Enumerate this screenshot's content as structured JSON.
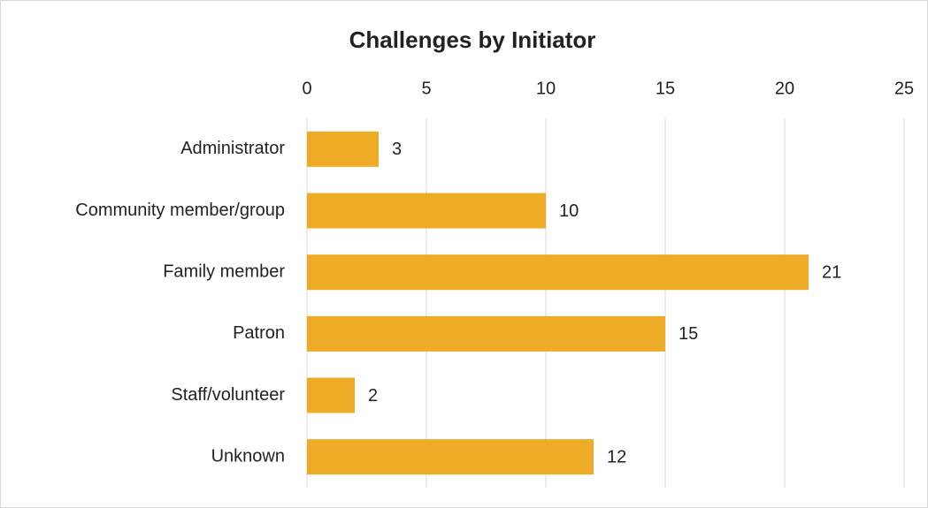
{
  "chart_data": {
    "type": "bar",
    "orientation": "horizontal",
    "title": "Challenges by Initiator",
    "categories": [
      "Administrator",
      "Community member/group",
      "Family member",
      "Patron",
      "Staff/volunteer",
      "Unknown"
    ],
    "values": [
      3,
      10,
      21,
      15,
      2,
      12
    ],
    "color": "#edab26",
    "xlim": [
      0,
      25
    ],
    "xticks": [
      0,
      5,
      10,
      15,
      20,
      25
    ],
    "grid": true,
    "show_value_labels": true
  }
}
